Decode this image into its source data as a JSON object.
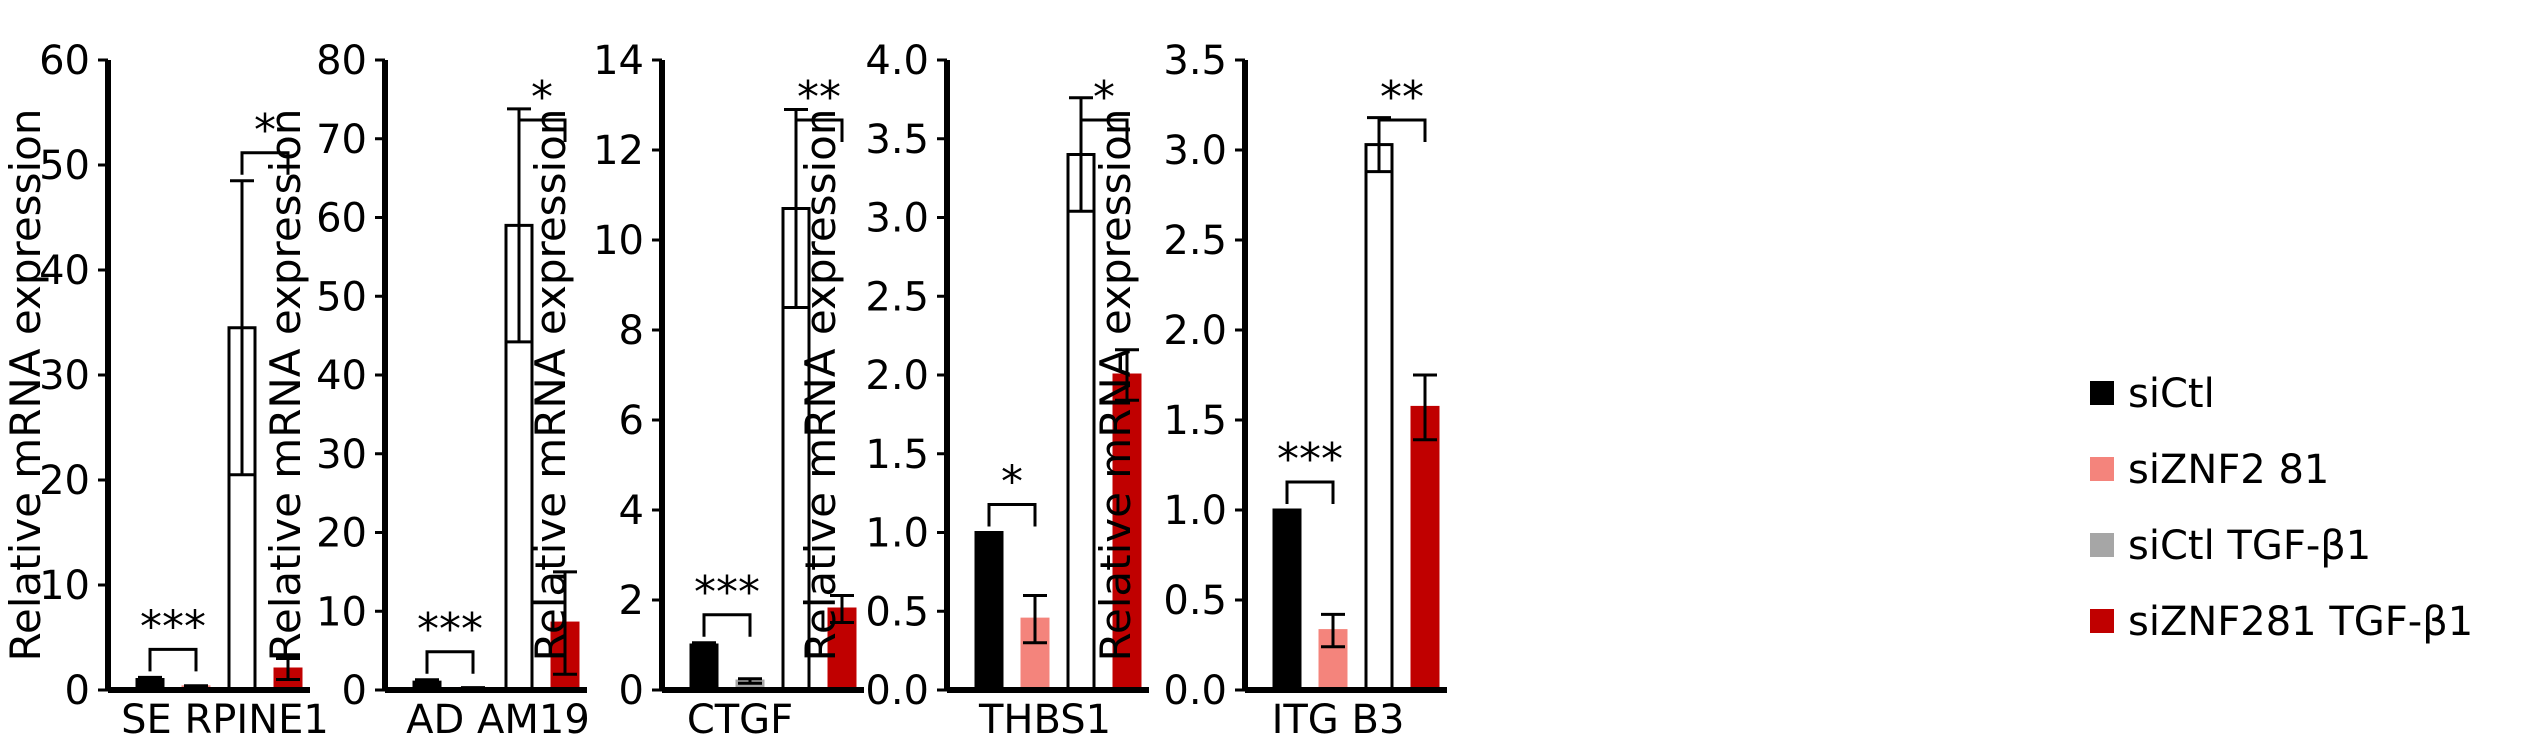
{
  "legend": {
    "items": [
      {
        "label": "siCtl",
        "color": "#000000"
      },
      {
        "label": "siZNF2 81",
        "color": "#f4847c"
      },
      {
        "label": "siCtl TGF-β1",
        "color": "#a6a6a6"
      },
      {
        "label": "siZNF281 TGF-β1",
        "color": "#c00000"
      }
    ]
  },
  "chart_data": [
    {
      "type": "bar",
      "title": "",
      "xlabel": "SE RPINE1",
      "ylabel": "Relative mRNA expression",
      "ylim": [
        0,
        60
      ],
      "yticks": [
        "0",
        "10",
        "20",
        "30",
        "40",
        "50",
        "60"
      ],
      "series": [
        {
          "name": "siCtl",
          "value": 1.0,
          "err": 0.2,
          "fill": "#000000",
          "stroke": "#000000"
        },
        {
          "name": "siZNF2 81",
          "value": 0.3,
          "err": 0.1,
          "fill": "#f4847c",
          "stroke": "#f4847c"
        },
        {
          "name": "siCtl TGF-β1",
          "value": 34.5,
          "err": 14.0,
          "fill": "#ffffff",
          "stroke": "#000000"
        },
        {
          "name": "siZNF281 TGF-β1",
          "value": 2.0,
          "err": 1.0,
          "fill": "#c00000",
          "stroke": "#c00000"
        }
      ],
      "significance": [
        {
          "label": "***",
          "from": 0,
          "to": 1
        },
        {
          "label": "*",
          "from": 2,
          "to": 3
        }
      ]
    },
    {
      "type": "bar",
      "title": "",
      "xlabel": "AD AM19",
      "ylabel": "Relative mRNA expression",
      "ylim": [
        0,
        80
      ],
      "yticks": [
        "0",
        "10",
        "20",
        "30",
        "40",
        "50",
        "60",
        "70",
        "80"
      ],
      "series": [
        {
          "name": "siCtl",
          "value": 1.0,
          "err": 0.3,
          "fill": "#000000",
          "stroke": "#000000"
        },
        {
          "name": "siZNF2 81",
          "value": 0.2,
          "err": 0.1,
          "fill": "#f4847c",
          "stroke": "#f4847c"
        },
        {
          "name": "siCtl TGF-β1",
          "value": 59.0,
          "err": 14.8,
          "fill": "#ffffff",
          "stroke": "#000000"
        },
        {
          "name": "siZNF281 TGF-β1",
          "value": 8.5,
          "err": 6.5,
          "fill": "#c00000",
          "stroke": "#c00000"
        }
      ],
      "significance": [
        {
          "label": "***",
          "from": 0,
          "to": 1
        },
        {
          "label": "*",
          "from": 2,
          "to": 3
        }
      ]
    },
    {
      "type": "bar",
      "title": "",
      "xlabel": "CTGF",
      "ylabel": "Relative mRNA expression",
      "ylim": [
        0,
        14
      ],
      "yticks": [
        "0",
        "2",
        "4",
        "6",
        "8",
        "10",
        "12",
        "14"
      ],
      "series": [
        {
          "name": "siCtl",
          "value": 1.0,
          "err": 0.05,
          "fill": "#000000",
          "stroke": "#000000"
        },
        {
          "name": "siZNF2 81",
          "value": 0.2,
          "err": 0.05,
          "fill": "#a6a6a6",
          "stroke": "#a6a6a6"
        },
        {
          "name": "siCtl TGF-β1",
          "value": 10.7,
          "err": 2.2,
          "fill": "#ffffff",
          "stroke": "#000000"
        },
        {
          "name": "siZNF281 TGF-β1",
          "value": 1.8,
          "err": 0.3,
          "fill": "#c00000",
          "stroke": "#c00000"
        }
      ],
      "significance": [
        {
          "label": "***",
          "from": 0,
          "to": 1
        },
        {
          "label": "**",
          "from": 2,
          "to": 3
        }
      ]
    },
    {
      "type": "bar",
      "title": "",
      "xlabel": "THBS1",
      "ylabel": "Relative mRNA expression",
      "ylim": [
        0,
        4
      ],
      "yticks": [
        "0.0",
        "0.5",
        "1.0",
        "1.5",
        "2.0",
        "2.5",
        "3.0",
        "3.5",
        "4.0"
      ],
      "series": [
        {
          "name": "siCtl",
          "value": 1.0,
          "err": 0,
          "fill": "#000000",
          "stroke": "#000000"
        },
        {
          "name": "siZNF2 81",
          "value": 0.45,
          "err": 0.15,
          "fill": "#f4847c",
          "stroke": "#f4847c"
        },
        {
          "name": "siCtl TGF-β1",
          "value": 3.4,
          "err": 0.36,
          "fill": "#ffffff",
          "stroke": "#000000"
        },
        {
          "name": "siZNF281 TGF-β1",
          "value": 2.0,
          "err": 0.16,
          "fill": "#c00000",
          "stroke": "#c00000"
        }
      ],
      "significance": [
        {
          "label": "*",
          "from": 0,
          "to": 1
        },
        {
          "label": "*",
          "from": 2,
          "to": 3
        }
      ]
    },
    {
      "type": "bar",
      "title": "",
      "xlabel": "ITG B3",
      "ylabel": "Relative mRNA expression",
      "ylim": [
        0,
        3.5
      ],
      "yticks": [
        "0.0",
        "0.5",
        "1.0",
        "1.5",
        "2.0",
        "2.5",
        "3.0",
        "3.5"
      ],
      "series": [
        {
          "name": "siCtl",
          "value": 1.0,
          "err": 0,
          "fill": "#000000",
          "stroke": "#000000"
        },
        {
          "name": "siZNF2 81",
          "value": 0.33,
          "err": 0.09,
          "fill": "#f4847c",
          "stroke": "#f4847c"
        },
        {
          "name": "siCtl TGF-β1",
          "value": 3.03,
          "err": 0.15,
          "fill": "#ffffff",
          "stroke": "#000000"
        },
        {
          "name": "siZNF281 TGF-β1",
          "value": 1.57,
          "err": 0.18,
          "fill": "#c00000",
          "stroke": "#c00000"
        }
      ],
      "significance": [
        {
          "label": "***",
          "from": 0,
          "to": 1
        },
        {
          "label": "**",
          "from": 2,
          "to": 3
        }
      ]
    }
  ]
}
